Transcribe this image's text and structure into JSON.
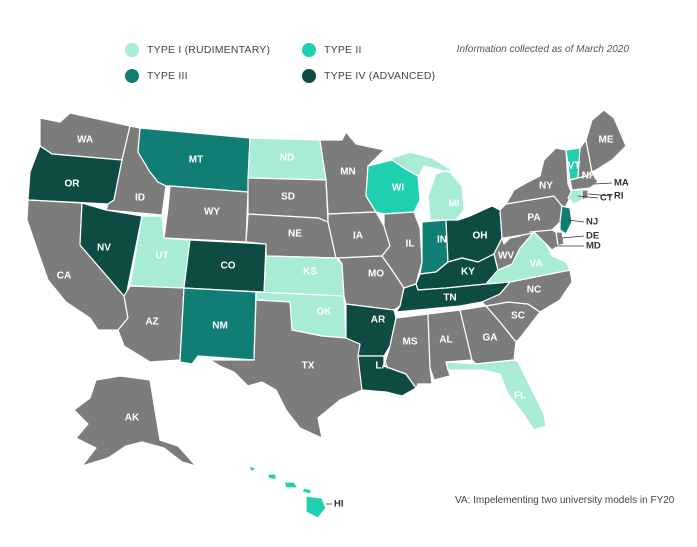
{
  "legend": {
    "items": [
      {
        "label": "TYPE I (RUDIMENTARY)",
        "color": "#a8ecd6",
        "key": "t1"
      },
      {
        "label": "TYPE II",
        "color": "#1ed0ad",
        "key": "t2"
      },
      {
        "label": "TYPE III",
        "color": "#107e74",
        "key": "t3"
      },
      {
        "label": "TYPE IV (ADVANCED)",
        "color": "#0d4b43",
        "key": "t4"
      }
    ]
  },
  "note_date": "Information collected as of March 2020",
  "note_va": "VA: Impelementing two university models in FY20",
  "colors": {
    "none": "#7c7c7c",
    "t1": "#a8ecd6",
    "t2": "#1ed0ad",
    "t3": "#107e74",
    "t4": "#0d4b43"
  },
  "states": [
    {
      "abbr": "WA",
      "type": "none"
    },
    {
      "abbr": "OR",
      "type": "t4"
    },
    {
      "abbr": "CA",
      "type": "none"
    },
    {
      "abbr": "ID",
      "type": "none"
    },
    {
      "abbr": "NV",
      "type": "t4"
    },
    {
      "abbr": "MT",
      "type": "t3"
    },
    {
      "abbr": "WY",
      "type": "none"
    },
    {
      "abbr": "UT",
      "type": "t1"
    },
    {
      "abbr": "AZ",
      "type": "none"
    },
    {
      "abbr": "CO",
      "type": "t4"
    },
    {
      "abbr": "NM",
      "type": "t3"
    },
    {
      "abbr": "ND",
      "type": "t1"
    },
    {
      "abbr": "SD",
      "type": "none"
    },
    {
      "abbr": "NE",
      "type": "none"
    },
    {
      "abbr": "KS",
      "type": "t1"
    },
    {
      "abbr": "OK",
      "type": "t1"
    },
    {
      "abbr": "TX",
      "type": "none"
    },
    {
      "abbr": "MN",
      "type": "none"
    },
    {
      "abbr": "IA",
      "type": "none"
    },
    {
      "abbr": "MO",
      "type": "none"
    },
    {
      "abbr": "AR",
      "type": "t4"
    },
    {
      "abbr": "LA",
      "type": "t4"
    },
    {
      "abbr": "WI",
      "type": "t2"
    },
    {
      "abbr": "IL",
      "type": "none"
    },
    {
      "abbr": "MI",
      "type": "t1"
    },
    {
      "abbr": "IN",
      "type": "t3"
    },
    {
      "abbr": "OH",
      "type": "t4"
    },
    {
      "abbr": "KY",
      "type": "t4"
    },
    {
      "abbr": "TN",
      "type": "t4"
    },
    {
      "abbr": "MS",
      "type": "none"
    },
    {
      "abbr": "AL",
      "type": "none"
    },
    {
      "abbr": "GA",
      "type": "none"
    },
    {
      "abbr": "FL",
      "type": "t1"
    },
    {
      "abbr": "SC",
      "type": "none"
    },
    {
      "abbr": "NC",
      "type": "none"
    },
    {
      "abbr": "VA",
      "type": "t1"
    },
    {
      "abbr": "WV",
      "type": "none"
    },
    {
      "abbr": "PA",
      "type": "none"
    },
    {
      "abbr": "NY",
      "type": "none"
    },
    {
      "abbr": "VT",
      "type": "t2"
    },
    {
      "abbr": "NH",
      "type": "none"
    },
    {
      "abbr": "ME",
      "type": "none"
    },
    {
      "abbr": "MA",
      "type": "none"
    },
    {
      "abbr": "RI",
      "type": "none"
    },
    {
      "abbr": "CT",
      "type": "t1"
    },
    {
      "abbr": "NJ",
      "type": "t3"
    },
    {
      "abbr": "DE",
      "type": "none"
    },
    {
      "abbr": "MD",
      "type": "none"
    },
    {
      "abbr": "AK",
      "type": "none"
    },
    {
      "abbr": "HI",
      "type": "t2"
    }
  ]
}
